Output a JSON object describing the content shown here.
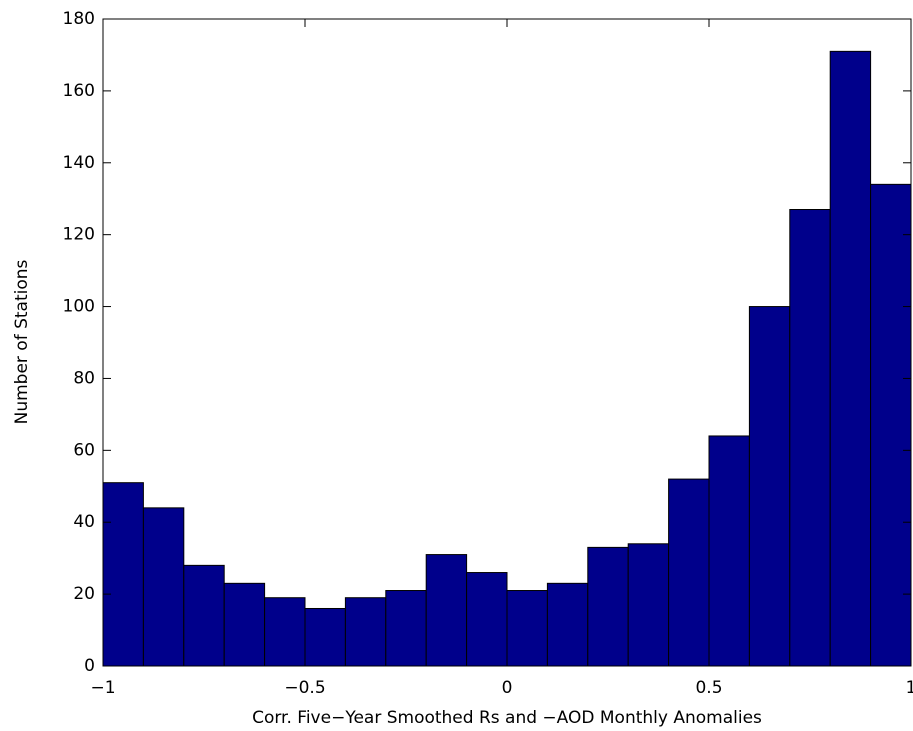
{
  "chart_data": {
    "type": "histogram",
    "xlabel": "Corr. Five−Year Smoothed Rs and −AOD  Monthly Anomalies",
    "ylabel": "Number of Stations",
    "bins": [
      -1,
      -0.9,
      -0.8,
      -0.7,
      -0.6,
      -0.5,
      -0.4,
      -0.3,
      -0.2,
      -0.1,
      0,
      0.1,
      0.2,
      0.3,
      0.4,
      0.5,
      0.6,
      0.7,
      0.8,
      0.9,
      1
    ],
    "values": [
      51,
      44,
      28,
      23,
      19,
      16,
      19,
      21,
      31,
      26,
      21,
      23,
      33,
      34,
      52,
      64,
      100,
      127,
      171,
      134
    ],
    "color": "#00008b",
    "xlim": [
      -1,
      1
    ],
    "ylim": [
      0,
      180
    ],
    "xticks": [
      {
        "value": -1,
        "label": "−1"
      },
      {
        "value": -0.5,
        "label": "−0.5"
      },
      0,
      0.5,
      1
    ],
    "yticks": [
      0,
      20,
      40,
      60,
      80,
      100,
      120,
      140,
      160,
      180
    ],
    "grid": false
  }
}
